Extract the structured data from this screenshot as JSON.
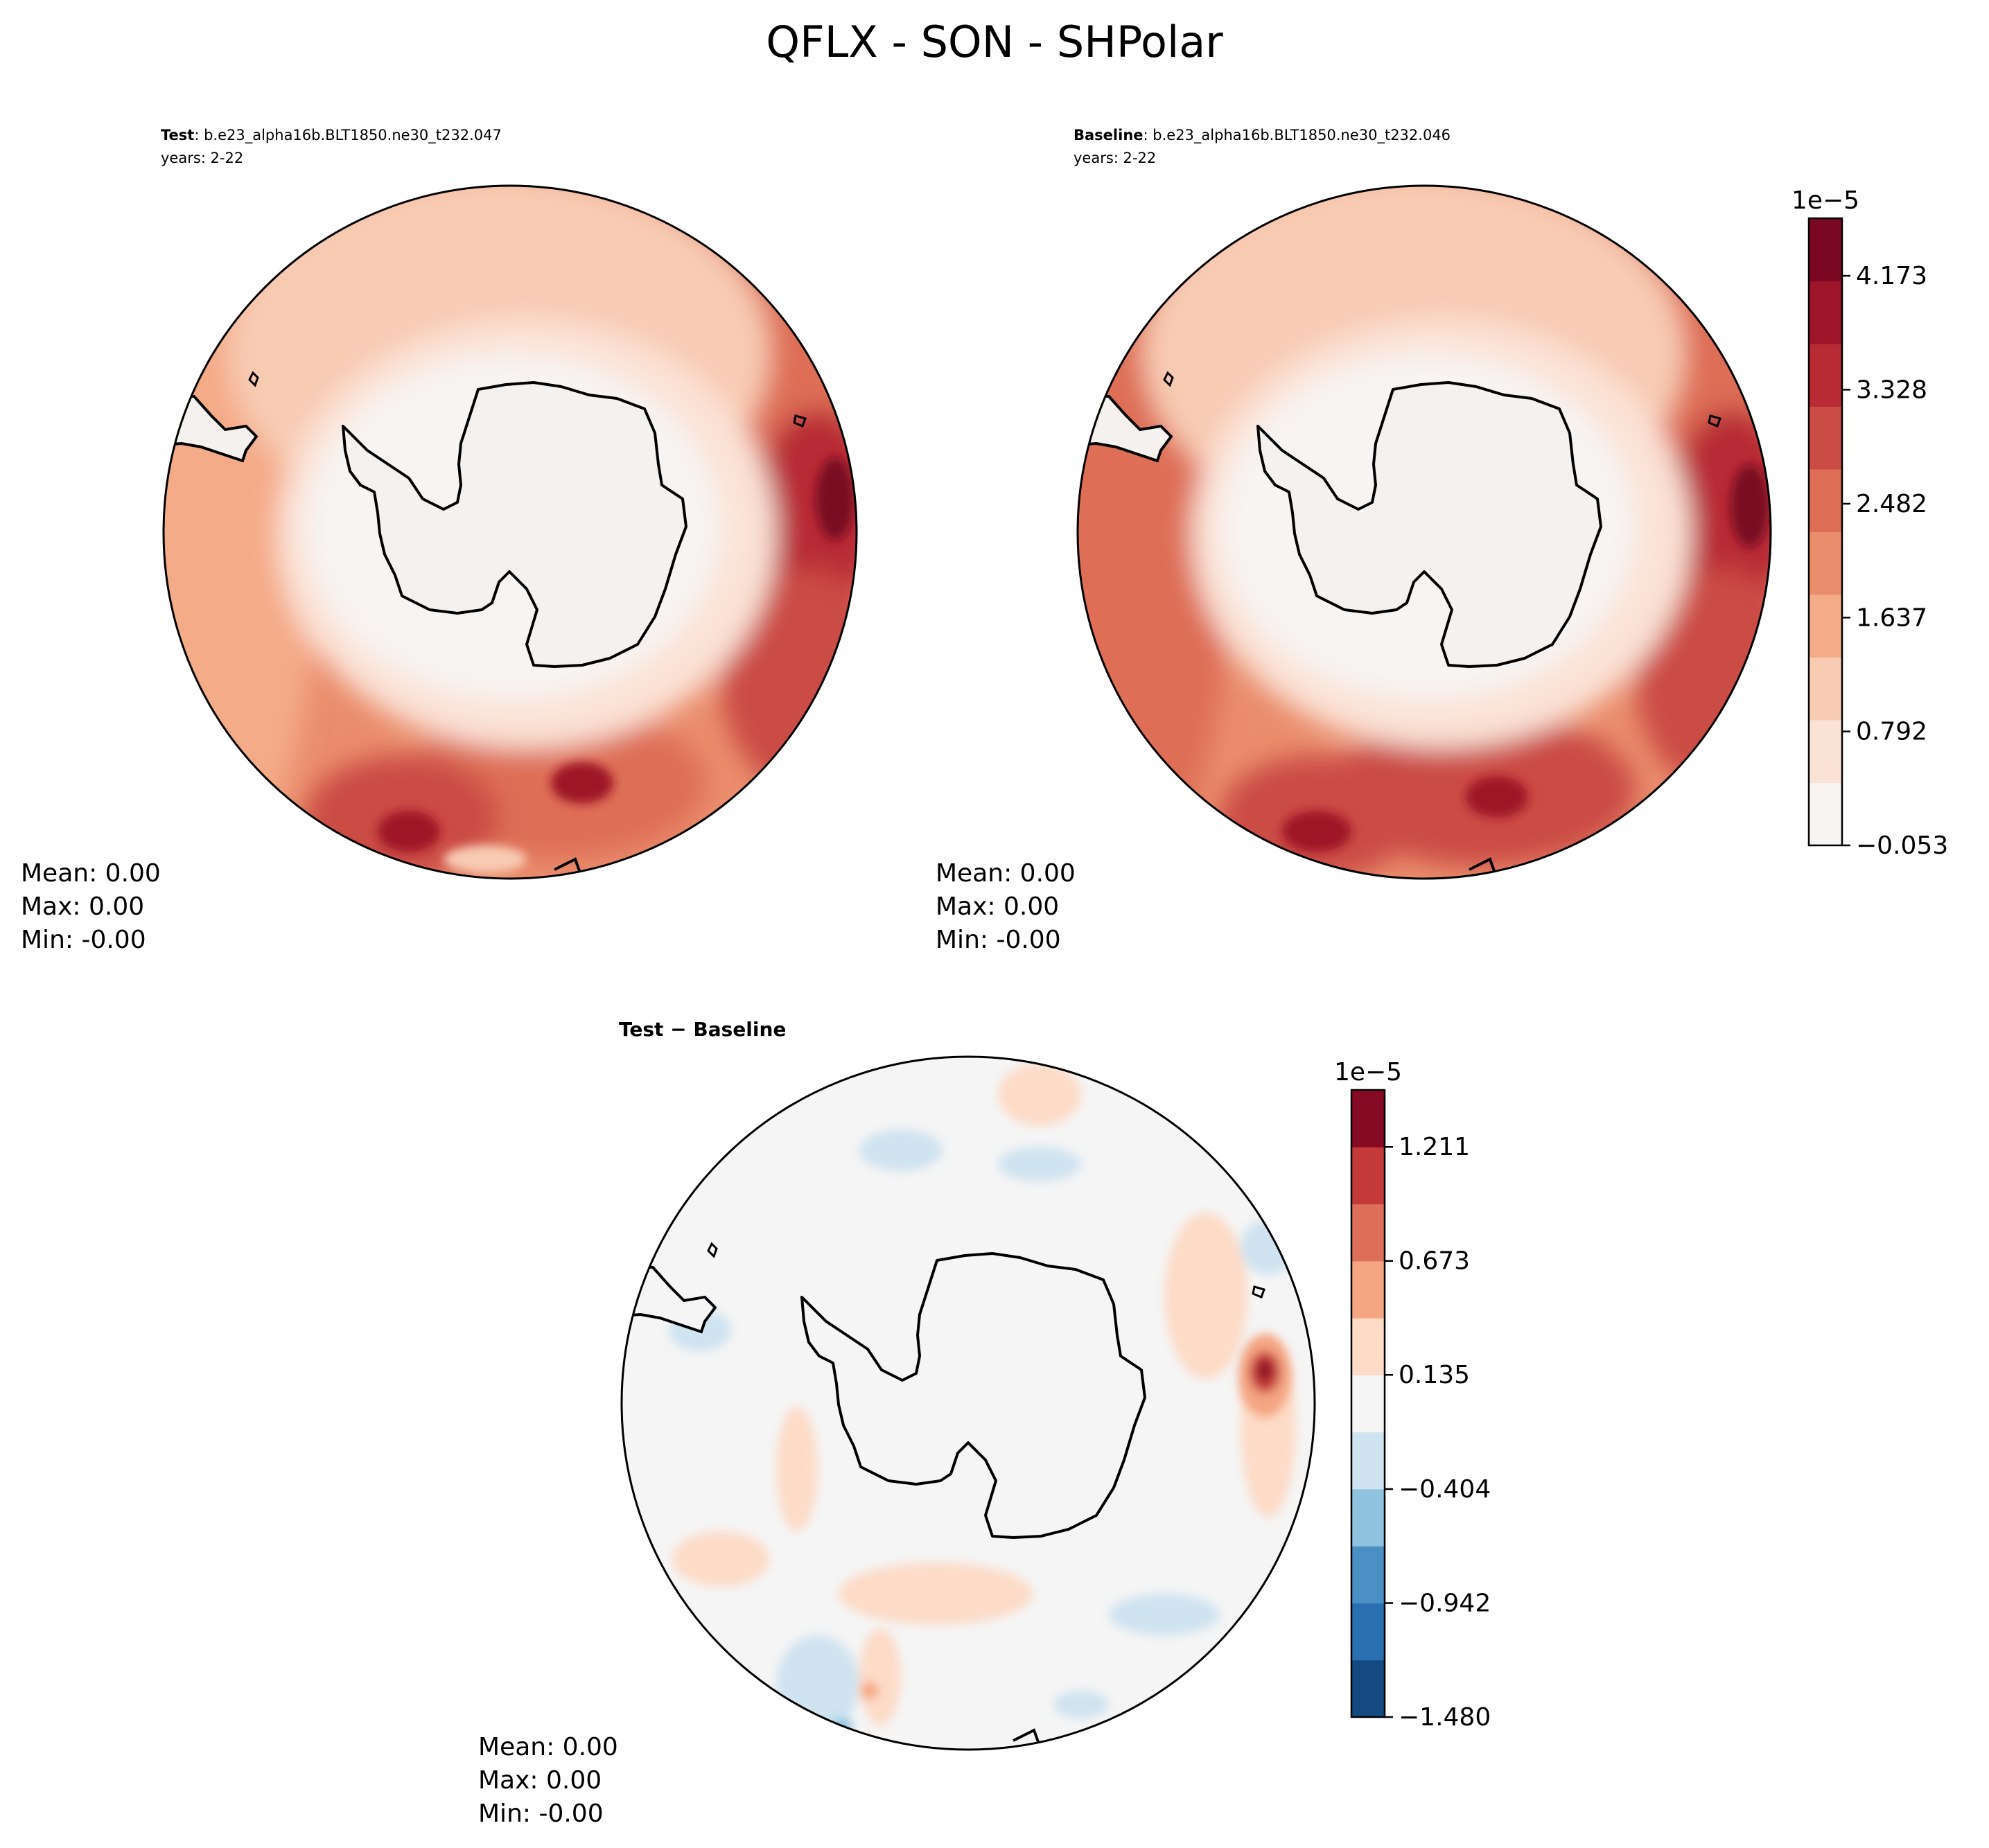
{
  "figure": {
    "title": "QFLX - SON - SHPolar"
  },
  "colors": {
    "land": "#f4f1ef",
    "neutral_ocean": "#f5f5f5",
    "coast": "#000000"
  },
  "chart_data": [
    {
      "type": "heatmap",
      "projection": "south-polar-stereographic",
      "panel": "test",
      "label_bold": "Test",
      "label_text": ": b.e23_alpha16b.BLT1850.ne30_t232.047",
      "years": "years: 2-22",
      "stats": {
        "mean": "Mean:  0.00",
        "max": "Max:  0.00",
        "min": "Min: -0.00"
      },
      "color_levels": 11,
      "field_pattern": "low values over Antarctica and adjacent sea ice, increasing equatorward with maxima near the Atlantic/Indian sector edge"
    },
    {
      "type": "heatmap",
      "projection": "south-polar-stereographic",
      "panel": "baseline",
      "label_bold": "Baseline",
      "label_text": ": b.e23_alpha16b.BLT1850.ne30_t232.046",
      "years": "years: 2-22",
      "stats": {
        "mean": "Mean:  0.00",
        "max": "Max:  0.00",
        "min": "Min: -0.00"
      },
      "colorbar": {
        "exponent": "1e−5",
        "ticks": [
          "−0.053",
          "0.792",
          "1.637",
          "2.482",
          "3.328",
          "4.173"
        ],
        "tick_values": [
          -0.053,
          0.792,
          1.637,
          2.482,
          3.328,
          4.173
        ],
        "range": [
          -0.053,
          4.6
        ],
        "colors": [
          "#f7f4f2",
          "#fbe2d6",
          "#f8cbb3",
          "#f4ab88",
          "#ea8d6c",
          "#de6e56",
          "#cb4c45",
          "#b82a34",
          "#9e1428",
          "#7a0822"
        ]
      }
    },
    {
      "type": "heatmap",
      "projection": "south-polar-stereographic",
      "panel": "difference",
      "label_bold": "Test − Baseline",
      "stats": {
        "mean": "Mean:  0.00",
        "max": "Max:  0.00",
        "min": "Min: -0.00"
      },
      "colorbar": {
        "exponent": "1e−5",
        "ticks": [
          "−1.480",
          "−0.942",
          "−0.404",
          "0.135",
          "0.673",
          "1.211"
        ],
        "tick_values": [
          -1.48,
          -0.942,
          -0.404,
          0.135,
          0.673,
          1.211
        ],
        "range": [
          -1.48,
          1.48
        ],
        "colors": [
          "#134a82",
          "#2a6fb0",
          "#4a90c4",
          "#8fc2de",
          "#cfe3f0",
          "#f5f5f5",
          "#fddbc7",
          "#f4a582",
          "#dd6f5a",
          "#c43a3a",
          "#850a23"
        ]
      }
    }
  ]
}
